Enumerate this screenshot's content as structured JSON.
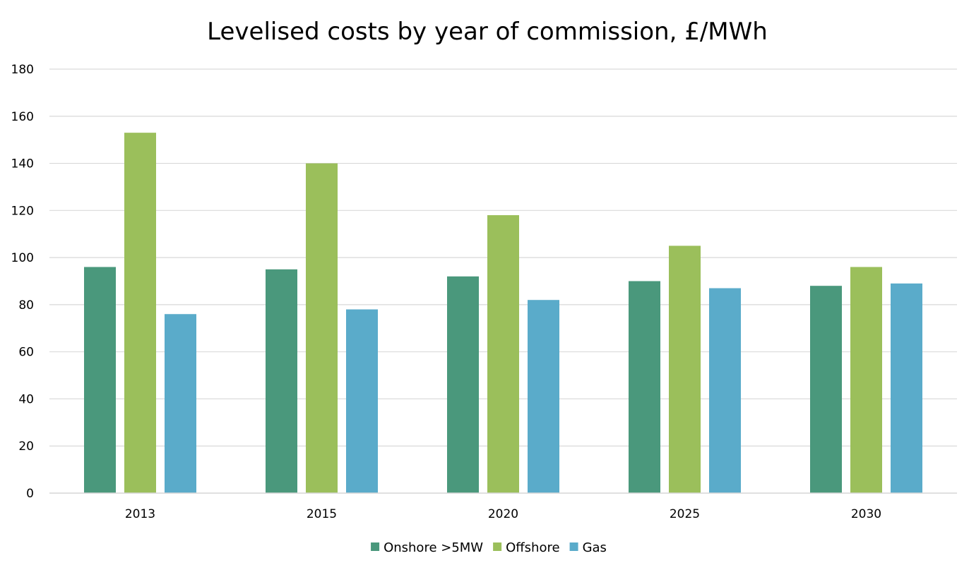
{
  "chart_data": {
    "type": "bar",
    "title": "Levelised costs by year of commission, £/MWh",
    "xlabel": "",
    "ylabel": "",
    "categories": [
      "2013",
      "2015",
      "2020",
      "2025",
      "2030"
    ],
    "series": [
      {
        "name": "Onshore >5MW",
        "color": "#4a987c",
        "values": [
          96,
          95,
          92,
          90,
          88
        ]
      },
      {
        "name": "Offshore",
        "color": "#9bbf5b",
        "values": [
          153,
          140,
          118,
          105,
          96
        ]
      },
      {
        "name": "Gas",
        "color": "#5aabca",
        "values": [
          76,
          78,
          82,
          87,
          89
        ]
      }
    ],
    "ylim": [
      0,
      180
    ],
    "yticks": [
      "0",
      "20",
      "40",
      "60",
      "80",
      "100",
      "120",
      "140",
      "160",
      "180"
    ],
    "grid": true,
    "gridline_color": "#d9d9d9",
    "legend_position": "bottom-center"
  }
}
